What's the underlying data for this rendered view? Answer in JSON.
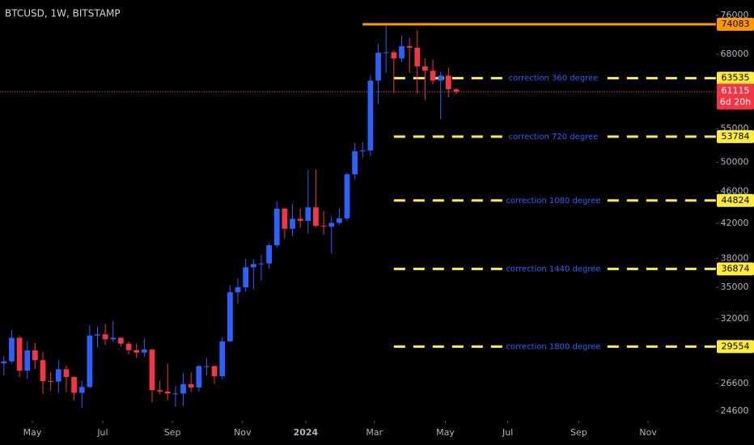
{
  "chart_data": {
    "type": "candlestick",
    "title": "BTCUSD, 1W, BITSTAMP",
    "log_scale": true,
    "up_color": "#2962ff",
    "down_color": "#f23645",
    "ylim": [
      23920,
      79400
    ],
    "yticks": [
      24600,
      26600,
      32000,
      35000,
      38000,
      42000,
      46000,
      50000,
      55000,
      68000,
      76000
    ],
    "xlim": [
      -0.5,
      91.3
    ],
    "xticks": [
      {
        "value": 3.65,
        "label": "May"
      },
      {
        "value": 12.67,
        "label": "Jul"
      },
      {
        "value": 21.6,
        "label": "Sep"
      },
      {
        "value": 30.6,
        "label": "Nov"
      },
      {
        "value": 38.7,
        "label": "2024"
      },
      {
        "value": 47.5,
        "label": "Mar"
      },
      {
        "value": 56.6,
        "label": "May"
      },
      {
        "value": 64.6,
        "label": "Jul"
      },
      {
        "value": 73.7,
        "label": "Sep"
      },
      {
        "value": 82.6,
        "label": "Nov"
      }
    ],
    "open": [
      28170,
      28330,
      30300,
      27590,
      29230,
      28430,
      26780,
      26750,
      27700,
      27100,
      25900,
      26340,
      30500,
      30600,
      30170,
      30300,
      29800,
      29250,
      29050,
      29300,
      26100,
      26000,
      25850,
      25850,
      26550,
      26300,
      27950,
      27950,
      27150,
      30000,
      34500,
      35000,
      37050,
      37400,
      37450,
      39450,
      43800,
      41350,
      42550,
      42300,
      43950,
      41700,
      41600,
      42050,
      42600,
      48300,
      51600,
      51700,
      63100,
      68300,
      68400,
      67200,
      69600,
      69300,
      65700,
      64900,
      63100,
      64000,
      61550
    ],
    "high": [
      28800,
      31000,
      30500,
      30000,
      29850,
      29100,
      27500,
      28450,
      28000,
      27150,
      26800,
      31400,
      31300,
      31500,
      31800,
      30350,
      30000,
      29800,
      30250,
      29400,
      26800,
      28150,
      26400,
      27400,
      27450,
      28050,
      28600,
      28000,
      30350,
      35200,
      35900,
      37950,
      37900,
      38400,
      39700,
      44700,
      43900,
      44400,
      43800,
      48900,
      48950,
      43500,
      42850,
      43850,
      48500,
      52800,
      52950,
      64000,
      70100,
      73800,
      68900,
      71700,
      71300,
      72800,
      67200,
      67000,
      64700,
      65500,
      61800
    ],
    "low": [
      27200,
      28170,
      27100,
      26950,
      27700,
      25800,
      26100,
      25900,
      25950,
      25350,
      24800,
      26250,
      29500,
      29700,
      29950,
      29550,
      28900,
      28600,
      28700,
      25200,
      25800,
      25350,
      24900,
      24950,
      26000,
      26000,
      27200,
      26550,
      26950,
      29950,
      33400,
      34550,
      34800,
      35650,
      36900,
      39200,
      40200,
      40500,
      41500,
      40800,
      41500,
      40650,
      38550,
      41850,
      42300,
      47650,
      50600,
      50900,
      59000,
      64500,
      60800,
      66500,
      64500,
      60800,
      59700,
      62400,
      56500,
      60200,
      60700
    ],
    "close": [
      28330,
      30300,
      27590,
      29230,
      28430,
      26780,
      26750,
      27700,
      27100,
      25900,
      26340,
      30500,
      30600,
      30170,
      30300,
      29800,
      29250,
      29050,
      29300,
      26100,
      26000,
      25850,
      25850,
      26550,
      26300,
      27950,
      27950,
      27150,
      30000,
      34500,
      35000,
      37050,
      37400,
      37450,
      39450,
      43800,
      41350,
      42550,
      42300,
      43950,
      41700,
      41600,
      42050,
      42600,
      48300,
      51600,
      51700,
      63100,
      68300,
      68400,
      67200,
      69600,
      69300,
      65700,
      64900,
      63100,
      64000,
      61550,
      61115
    ],
    "levels": [
      {
        "value": 74083,
        "color": "#ff9800",
        "style": "solid",
        "start": 46
      },
      {
        "value": 63535,
        "color": "#ffeb3b",
        "style": "dashed",
        "start": 50,
        "label": "correction 360 degree"
      },
      {
        "value": 53784,
        "color": "#ffeb3b",
        "style": "dashed",
        "start": 50,
        "label": "correction 720 degree"
      },
      {
        "value": 44824,
        "color": "#ffeb3b",
        "style": "dashed",
        "start": 50,
        "label": "correction 1080 degree"
      },
      {
        "value": 36874,
        "color": "#ffeb3b",
        "style": "dashed",
        "start": 50,
        "label": "correction 1440 degree"
      },
      {
        "value": 29554,
        "color": "#ffeb3b",
        "style": "dashed",
        "start": 50,
        "label": "correction 1800 degree"
      }
    ],
    "last_price": {
      "value": 61115,
      "countdown": "6d 20h",
      "color": "#f23645"
    }
  }
}
